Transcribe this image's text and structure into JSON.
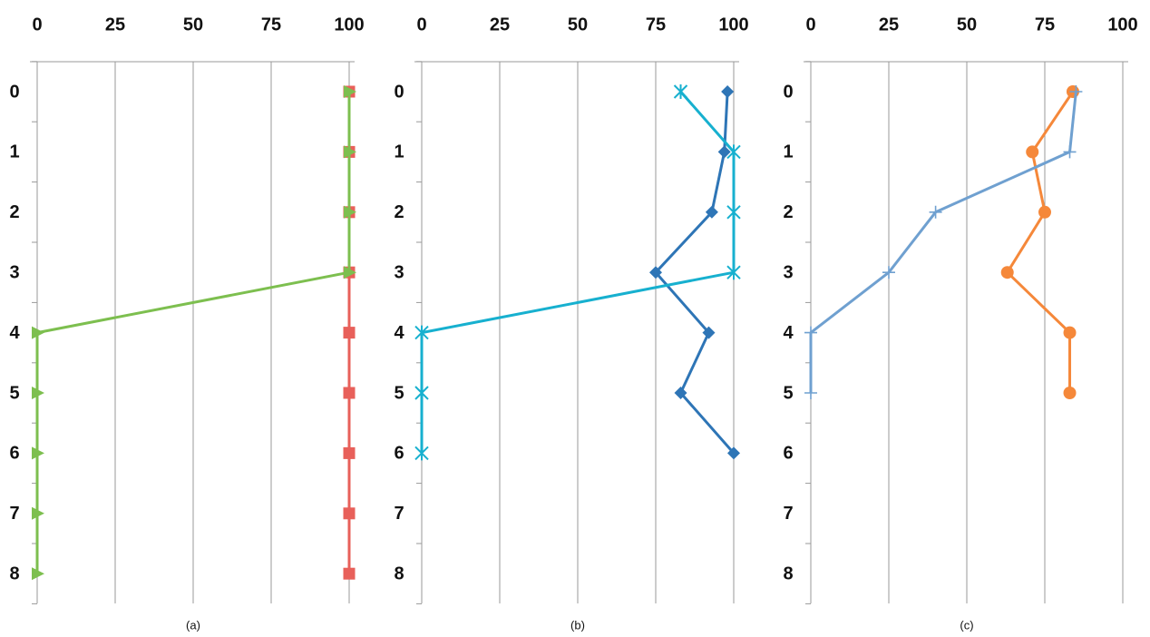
{
  "chart_data": [
    {
      "type": "line",
      "subtitle": "(a)",
      "categories": [
        0,
        1,
        2,
        3,
        4,
        5,
        6,
        7,
        8
      ],
      "series": [
        {
          "color": "#e8605a",
          "marker": "square",
          "values": [
            100,
            100,
            100,
            100,
            100,
            100,
            100,
            100,
            100
          ]
        },
        {
          "color": "#7dbf4f",
          "marker": "triangle",
          "values": [
            100,
            100,
            100,
            100,
            0,
            0,
            0,
            0,
            0
          ]
        }
      ],
      "xlim": [
        0,
        100
      ],
      "xticks": [
        0,
        25,
        50,
        75,
        100
      ],
      "grid": true
    },
    {
      "type": "line",
      "subtitle": "(b)",
      "categories": [
        0,
        1,
        2,
        3,
        4,
        5,
        6,
        7,
        8
      ],
      "series": [
        {
          "color": "#2e75b6",
          "marker": "diamond",
          "values": [
            98,
            97,
            93,
            75,
            92,
            83,
            100,
            null,
            null
          ]
        },
        {
          "color": "#17b0cf",
          "marker": "asterisk",
          "values": [
            83,
            100,
            100,
            100,
            0,
            0,
            0,
            null,
            null
          ]
        }
      ],
      "xlim": [
        0,
        100
      ],
      "xticks": [
        0,
        25,
        50,
        75,
        100
      ],
      "grid": true
    },
    {
      "type": "line",
      "subtitle": "(c)",
      "categories": [
        0,
        1,
        2,
        3,
        4,
        5,
        6,
        7,
        8
      ],
      "series": [
        {
          "color": "#f5883a",
          "marker": "circle",
          "values": [
            84,
            71,
            75,
            63,
            83,
            83,
            null,
            null,
            null
          ]
        },
        {
          "color": "#6fa0d0",
          "marker": "plus",
          "values": [
            85,
            83,
            40,
            25,
            0,
            0,
            null,
            null,
            null
          ]
        }
      ],
      "xlim": [
        0,
        100
      ],
      "xticks": [
        0,
        25,
        50,
        75,
        100
      ],
      "grid": true
    }
  ]
}
